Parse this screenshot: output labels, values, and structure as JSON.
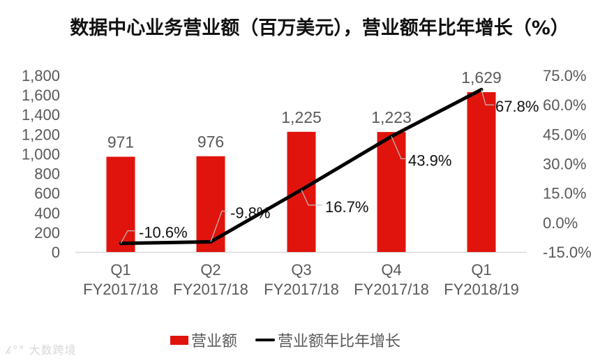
{
  "title": "数据中心业务营业额（百万美元），营业额年比年增长（%）",
  "colors": {
    "bar": "#E0140C",
    "line": "#000000",
    "axis_text": "#595959",
    "baseline": "#D9D9D9"
  },
  "left_axis": {
    "ticks": [
      "1,800",
      "1,600",
      "1,400",
      "1,200",
      "1,000",
      "800",
      "600",
      "400",
      "200",
      "0"
    ]
  },
  "right_axis": {
    "ticks": [
      "75.0%",
      "60.0%",
      "45.0%",
      "30.0%",
      "15.0%",
      "0.0%",
      "-15.0%"
    ]
  },
  "categories": [
    {
      "q": "Q1",
      "fy": "FY2017/18"
    },
    {
      "q": "Q2",
      "fy": "FY2017/18"
    },
    {
      "q": "Q3",
      "fy": "FY2017/18"
    },
    {
      "q": "Q4",
      "fy": "FY2017/18"
    },
    {
      "q": "Q1",
      "fy": "FY2018/19"
    }
  ],
  "bar_labels": [
    "971",
    "976",
    "1,225",
    "1,223",
    "1,629"
  ],
  "line_labels": [
    "-10.6%",
    "-9.8%",
    "16.7%",
    "43.9%",
    "67.8%"
  ],
  "legend": {
    "bar": "营业额",
    "line": "营业额年比年增长"
  },
  "watermark": "大数跨境",
  "chart_data": {
    "type": "bar",
    "title": "数据中心业务营业额（百万美元），营业额年比年增长（%）",
    "categories": [
      "Q1 FY2017/18",
      "Q2 FY2017/18",
      "Q3 FY2017/18",
      "Q4 FY2017/18",
      "Q1 FY2018/19"
    ],
    "series": [
      {
        "name": "营业额",
        "type": "bar",
        "axis": "left",
        "color": "#E0140C",
        "values": [
          971,
          976,
          1225,
          1223,
          1629
        ]
      },
      {
        "name": "营业额年比年增长",
        "type": "line",
        "axis": "right",
        "color": "#000000",
        "values": [
          -10.6,
          -9.8,
          16.7,
          43.9,
          67.8
        ]
      }
    ],
    "xlabel": "",
    "ylabel": "",
    "ylim": [
      0,
      1800
    ],
    "y2lim": [
      -15.0,
      75.0
    ],
    "y_ticks": [
      0,
      200,
      400,
      600,
      800,
      1000,
      1200,
      1400,
      1600,
      1800
    ],
    "y2_ticks": [
      -15.0,
      0.0,
      15.0,
      30.0,
      45.0,
      60.0,
      75.0
    ],
    "grid": false,
    "legend_position": "bottom"
  }
}
